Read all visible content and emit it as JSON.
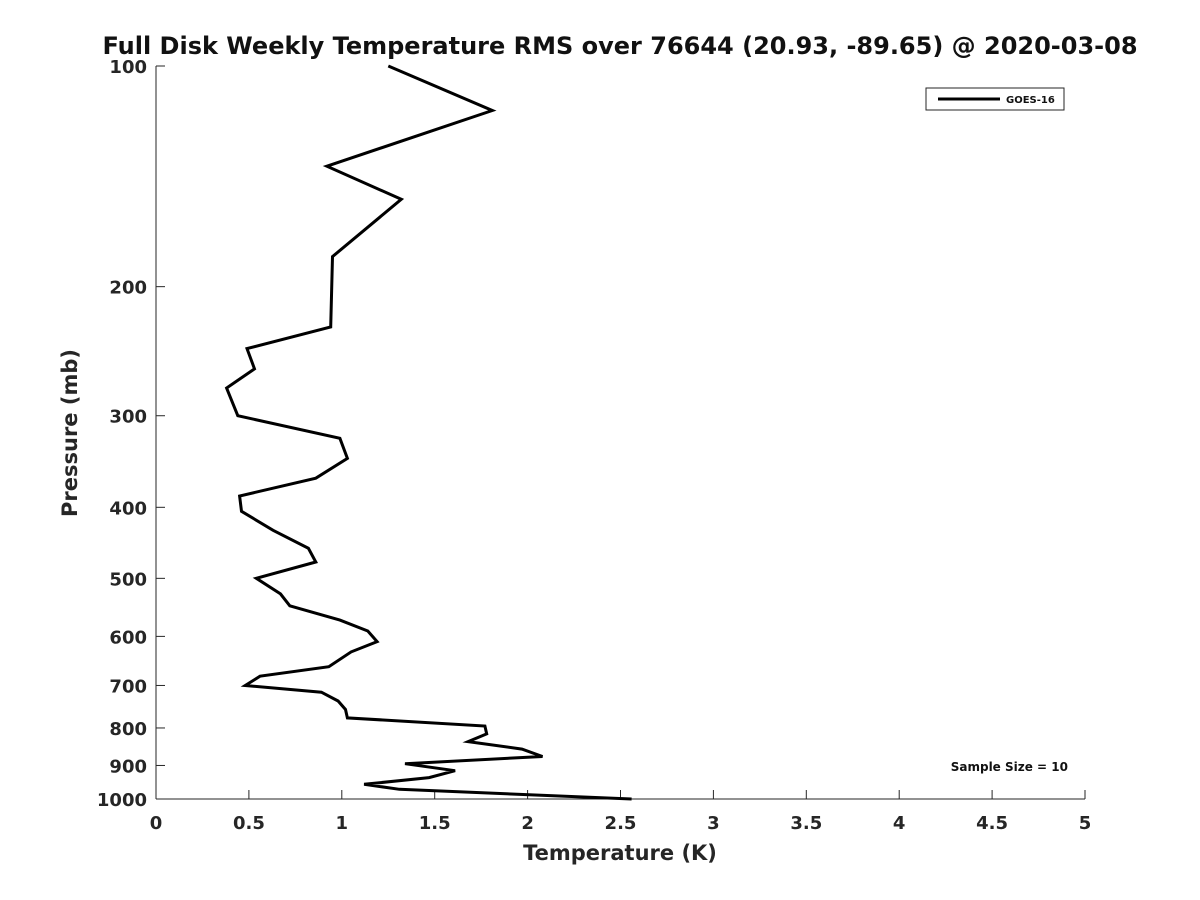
{
  "chart_data": {
    "type": "line",
    "title": "Full Disk Weekly Temperature RMS over 76644 (20.93, -89.65) @ 2020-03-08",
    "xlabel": "Temperature (K)",
    "ylabel": "Pressure (mb)",
    "xlim": [
      0,
      5
    ],
    "ylim": [
      1000,
      100
    ],
    "y_scale": "log",
    "y_direction": "reversed",
    "grid": false,
    "legend_position": "top-right",
    "x_ticks": [
      0,
      0.5,
      1,
      1.5,
      2,
      2.5,
      3,
      3.5,
      4,
      4.5,
      5
    ],
    "x_tick_labels": [
      "0",
      "0.5",
      "1",
      "1.5",
      "2",
      "2.5",
      "3",
      "3.5",
      "4",
      "4.5",
      "5"
    ],
    "y_ticks": [
      100,
      200,
      300,
      400,
      500,
      600,
      700,
      800,
      900,
      1000
    ],
    "y_tick_labels": [
      "100",
      "200",
      "300",
      "400",
      "500",
      "600",
      "700",
      "800",
      "900",
      "1000"
    ],
    "series": [
      {
        "name": "GOES-16",
        "color": "#000000",
        "points": [
          [
            1.25,
            100
          ],
          [
            1.81,
            115
          ],
          [
            0.92,
            137
          ],
          [
            1.32,
            152
          ],
          [
            0.95,
            182
          ],
          [
            0.94,
            227
          ],
          [
            0.49,
            243
          ],
          [
            0.53,
            259
          ],
          [
            0.38,
            275
          ],
          [
            0.44,
            300
          ],
          [
            0.99,
            322
          ],
          [
            1.03,
            343
          ],
          [
            0.86,
            365
          ],
          [
            0.45,
            386
          ],
          [
            0.46,
            405
          ],
          [
            0.63,
            430
          ],
          [
            0.82,
            455
          ],
          [
            0.86,
            475
          ],
          [
            0.54,
            500
          ],
          [
            0.67,
            525
          ],
          [
            0.72,
            545
          ],
          [
            0.99,
            570
          ],
          [
            1.14,
            590
          ],
          [
            1.19,
            610
          ],
          [
            1.05,
            630
          ],
          [
            0.93,
            660
          ],
          [
            0.56,
            680
          ],
          [
            0.48,
            700
          ],
          [
            0.89,
            715
          ],
          [
            0.98,
            735
          ],
          [
            1.02,
            755
          ],
          [
            1.03,
            775
          ],
          [
            1.77,
            795
          ],
          [
            1.78,
            815
          ],
          [
            1.68,
            835
          ],
          [
            1.97,
            855
          ],
          [
            2.08,
            875
          ],
          [
            1.34,
            895
          ],
          [
            1.61,
            915
          ],
          [
            1.47,
            935
          ],
          [
            1.12,
            955
          ],
          [
            1.31,
            970
          ],
          [
            2.56,
            1000
          ]
        ]
      }
    ],
    "annotations": [
      {
        "text": "Sample Size = 10"
      }
    ]
  }
}
